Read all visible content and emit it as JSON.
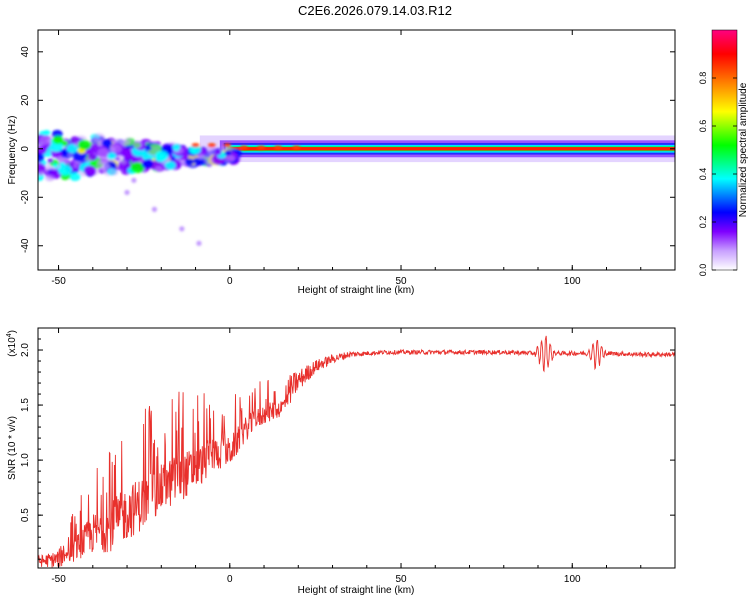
{
  "title": "C2E6.2026.079.14.03.R12",
  "chart_data": [
    {
      "type": "heatmap",
      "title": "C2E6.2026.079.14.03.R12",
      "xlabel": "Height of straight line (km)",
      "ylabel": "Frequency (Hz)",
      "xlim": [
        -56,
        130
      ],
      "ylim": [
        -50,
        49
      ],
      "xticks": [
        -50,
        0,
        50,
        100
      ],
      "xtick_labels": [
        "-50",
        "0",
        "50",
        "100"
      ],
      "yticks": [
        -40,
        -20,
        0,
        20,
        40
      ],
      "ytick_labels": [
        "-40",
        "-20",
        "0",
        "20",
        "40"
      ],
      "colorbar": {
        "label": "Normalized spectral amplitude",
        "range": [
          0,
          1
        ],
        "ticks": [
          0.0,
          0.2,
          0.4,
          0.6,
          0.8
        ],
        "tick_labels": [
          "0.0",
          "0.2",
          "0.4",
          "0.6",
          "0.8"
        ],
        "colors": [
          "#ffffff",
          "#c8a0ff",
          "#7f00ff",
          "#0000ff",
          "#00ffff",
          "#00ff00",
          "#ffff00",
          "#ff8000",
          "#ff0000",
          "#ff0080"
        ]
      },
      "centerline_frequency": 0,
      "features": [
        {
          "x_start": -56,
          "x_end": 0,
          "description": "scattered blobs",
          "freq_center": -2,
          "freq_spread": 8
        },
        {
          "x_start": 0,
          "x_end": 130,
          "description": "narrow strong band",
          "freq_center": 0,
          "freq_halfwidth": 3
        }
      ]
    },
    {
      "type": "line",
      "xlabel": "Height of straight line (km)",
      "ylabel": "SNR (10 * v/v)",
      "yscale_note": "(x10^4)",
      "yscale_base": "(x10",
      "yscale_exp": "4",
      "xlim": [
        -56,
        130
      ],
      "ylim": [
        0.02,
        2.2
      ],
      "xticks": [
        -50,
        0,
        50,
        100
      ],
      "xtick_labels": [
        "-50",
        "0",
        "50",
        "100"
      ],
      "yticks": [
        0.5,
        1.0,
        1.5,
        2.0
      ],
      "ytick_labels": [
        "0.5",
        "1.0",
        "1.5",
        "2.0"
      ],
      "color": "#e8302c",
      "series": [
        {
          "name": "SNR",
          "x": [
            -56,
            -50,
            -45,
            -40,
            -35,
            -30,
            -25,
            -20,
            -15,
            -10,
            -5,
            0,
            5,
            10,
            15,
            20,
            25,
            30,
            35,
            40,
            45,
            50,
            60,
            70,
            80,
            90,
            95,
            100,
            110,
            120,
            130
          ],
          "y": [
            0.08,
            0.1,
            0.3,
            0.5,
            0.6,
            0.75,
            0.85,
            0.95,
            1.05,
            1.1,
            1.2,
            1.2,
            1.4,
            1.5,
            1.55,
            1.72,
            1.85,
            1.92,
            1.96,
            1.97,
            1.98,
            1.98,
            1.98,
            1.98,
            1.98,
            1.97,
            1.97,
            1.97,
            1.97,
            1.96,
            1.96
          ],
          "noise_amplitude": [
            0.05,
            0.08,
            0.25,
            0.4,
            0.5,
            0.55,
            0.55,
            0.5,
            0.5,
            0.45,
            0.35,
            0.3,
            0.25,
            0.2,
            0.18,
            0.1,
            0.06,
            0.04,
            0.03,
            0.02,
            0.02,
            0.02,
            0.02,
            0.02,
            0.02,
            0.02,
            0.02,
            0.02,
            0.02,
            0.02,
            0.02
          ]
        }
      ],
      "glitches": [
        {
          "x": 92,
          "amplitude": 0.18
        },
        {
          "x": 107,
          "amplitude": 0.15
        }
      ]
    }
  ]
}
